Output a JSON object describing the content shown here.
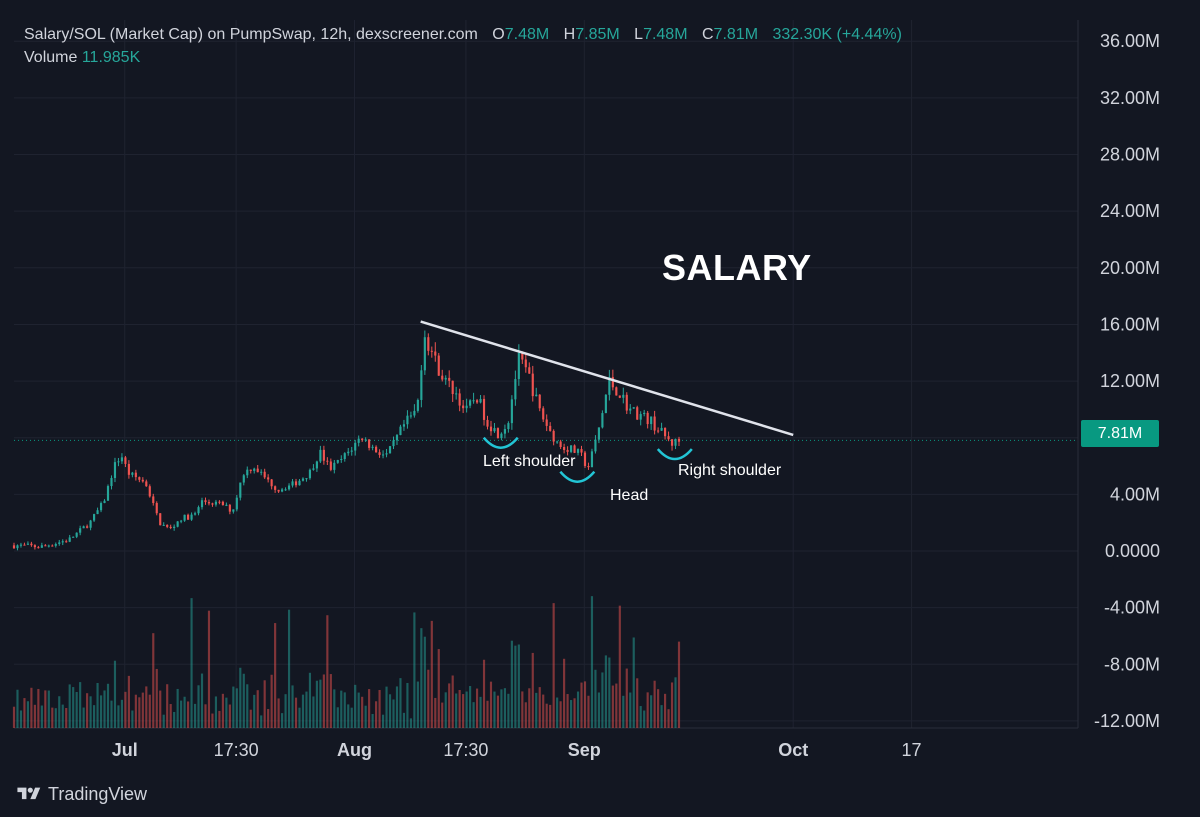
{
  "header": {
    "symbol": "Salary/SOL (Market Cap) on PumpSwap, 12h, dexscreener.com",
    "o_label": "O",
    "o_value": "7.48M",
    "h_label": "H",
    "h_value": "7.85M",
    "l_label": "L",
    "l_value": "7.48M",
    "c_label": "C",
    "c_value": "7.81M",
    "change": "332.30K (+4.44%)",
    "volume_label": "Volume",
    "volume_value": "11.985K"
  },
  "annotations": {
    "title": "SALARY",
    "left_shoulder": "Left shoulder",
    "head": "Head",
    "right_shoulder": "Right shoulder"
  },
  "last_price_tag": "7.81M",
  "footer": {
    "brand": "TradingView"
  },
  "colors": {
    "background": "#131722",
    "up": "#26a69a",
    "down": "#ef5350",
    "trendline": "#e0e3eb",
    "annotation_arc": "#22c5d5",
    "last_price_line": "#089981"
  },
  "chart_data": {
    "type": "candlestick",
    "y_axis": {
      "ticks": [
        "36.00M",
        "32.00M",
        "28.00M",
        "24.00M",
        "20.00M",
        "16.00M",
        "12.00M",
        "8.00M",
        "4.00M",
        "0.0000",
        "-4.00M",
        "-8.00M",
        "-12.00M"
      ],
      "tick_values": [
        36,
        32,
        28,
        24,
        20,
        16,
        12,
        8,
        4,
        0,
        -4,
        -8,
        -12
      ],
      "unit": "M",
      "range": [
        -12.5,
        37.5
      ]
    },
    "x_axis": {
      "ticks": [
        "Jul",
        "17:30",
        "Aug",
        "17:30",
        "Sep",
        "Oct",
        "17"
      ],
      "tick_values": [
        0,
        16,
        33,
        49,
        66,
        96,
        113
      ],
      "bold": [
        "Jul",
        "Aug",
        "Sep",
        "Oct"
      ],
      "range": [
        -15.9,
        136.9
      ]
    },
    "last_price": 7.81,
    "keypoints": [
      {
        "t": -15.9,
        "v": 0.4
      },
      {
        "t": -12,
        "v": 0.3
      },
      {
        "t": -8,
        "v": 0.8
      },
      {
        "t": -5,
        "v": 2.0
      },
      {
        "t": -3,
        "v": 3.5
      },
      {
        "t": -1.5,
        "v": 6.0
      },
      {
        "t": -0.5,
        "v": 6.8
      },
      {
        "t": 0.5,
        "v": 5.5
      },
      {
        "t": 3,
        "v": 4.8
      },
      {
        "t": 5,
        "v": 2.0
      },
      {
        "t": 6.5,
        "v": 1.5
      },
      {
        "t": 8,
        "v": 2.3
      },
      {
        "t": 10,
        "v": 2.5
      },
      {
        "t": 11,
        "v": 3.5
      },
      {
        "t": 14,
        "v": 3.3
      },
      {
        "t": 15.5,
        "v": 2.8
      },
      {
        "t": 17,
        "v": 5.5
      },
      {
        "t": 18.5,
        "v": 6.0
      },
      {
        "t": 20.5,
        "v": 5.0
      },
      {
        "t": 22,
        "v": 4.3
      },
      {
        "t": 24.5,
        "v": 4.8
      },
      {
        "t": 26.5,
        "v": 5.5
      },
      {
        "t": 28,
        "v": 7.0
      },
      {
        "t": 29.5,
        "v": 5.8
      },
      {
        "t": 31,
        "v": 6.4
      },
      {
        "t": 32.5,
        "v": 7.2
      },
      {
        "t": 34,
        "v": 8.1
      },
      {
        "t": 35.5,
        "v": 7.3
      },
      {
        "t": 37.5,
        "v": 6.7
      },
      {
        "t": 38,
        "v": 7.0
      },
      {
        "t": 40,
        "v": 8.8
      },
      {
        "t": 42,
        "v": 10.0
      },
      {
        "t": 43,
        "v": 15.5
      },
      {
        "t": 44.5,
        "v": 13.5
      },
      {
        "t": 46,
        "v": 12.0
      },
      {
        "t": 47.5,
        "v": 11.2
      },
      {
        "t": 49,
        "v": 9.8
      },
      {
        "t": 50.5,
        "v": 11.0
      },
      {
        "t": 52,
        "v": 9.2
      },
      {
        "t": 53.5,
        "v": 8.3
      },
      {
        "t": 55,
        "v": 9.0
      },
      {
        "t": 56.5,
        "v": 13.5
      },
      {
        "t": 58,
        "v": 12.4
      },
      {
        "t": 59.5,
        "v": 10.0
      },
      {
        "t": 61,
        "v": 8.5
      },
      {
        "t": 62.5,
        "v": 7.4
      },
      {
        "t": 64,
        "v": 7.2
      },
      {
        "t": 65.5,
        "v": 6.8
      },
      {
        "t": 66.5,
        "v": 5.8
      },
      {
        "t": 67.5,
        "v": 7.5
      },
      {
        "t": 68.5,
        "v": 9.5
      },
      {
        "t": 69.5,
        "v": 12.0
      },
      {
        "t": 71,
        "v": 11.2
      },
      {
        "t": 72.5,
        "v": 10.0
      },
      {
        "t": 74,
        "v": 9.6
      },
      {
        "t": 75.5,
        "v": 9.2
      },
      {
        "t": 77,
        "v": 8.4
      },
      {
        "t": 78.5,
        "v": 7.6
      },
      {
        "t": 80,
        "v": 7.81
      }
    ],
    "volume_base": -12.5,
    "volume_max_height": 10.3,
    "trendline": {
      "from": {
        "t": 42.5,
        "v": 16.2
      },
      "to": {
        "t": 96,
        "v": 8.2
      }
    },
    "pattern_marks": [
      {
        "label": "Left shoulder",
        "t": 54,
        "v": 8.0
      },
      {
        "label": "Head",
        "t": 65,
        "v": 5.6
      },
      {
        "label": "Right shoulder",
        "t": 79,
        "v": 7.2
      }
    ]
  }
}
